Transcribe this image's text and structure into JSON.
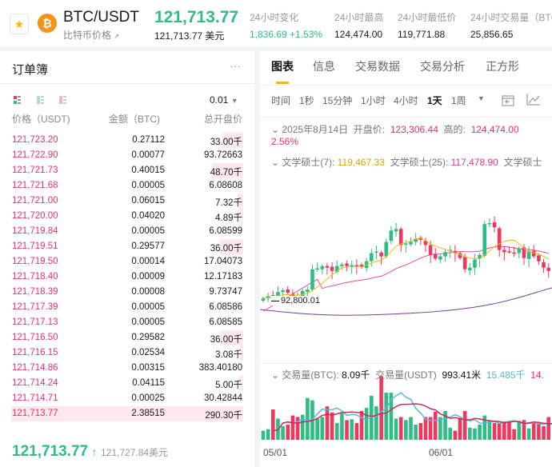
{
  "header": {
    "pair": "BTC/USDT",
    "subtitle": "比特币价格",
    "subtitle_icon": "external-arrow-icon",
    "price": "121,713.77",
    "price_usd": "121,713.77 美元",
    "stats": [
      {
        "label": "24小时变化",
        "value": "1,836.69 +1.53%",
        "color": "#2ebd85"
      },
      {
        "label": "24小时最高",
        "value": "124,474.00"
      },
      {
        "label": "24小时最低价",
        "value": "119,771.88"
      },
      {
        "label": "24小时交易量（BTC",
        "value": "25,856.65"
      }
    ]
  },
  "orderbook": {
    "title": "订单簿",
    "more": "···",
    "precision": "0.01",
    "columns": [
      "价格（USDT)",
      "金额（BTC)",
      "总开盘价"
    ],
    "rows": [
      [
        "121,723.20",
        "0.27112",
        "33.00千",
        0.36
      ],
      [
        "121,722.90",
        "0.00077",
        "93.72663",
        0
      ],
      [
        "121,721.73",
        "0.40015",
        "48.70千",
        0.53
      ],
      [
        "121,721.68",
        "0.00005",
        "6.08608",
        0
      ],
      [
        "121,721.00",
        "0.06015",
        "7.32千",
        0.1
      ],
      [
        "121,720.00",
        "0.04020",
        "4.89千",
        0.07
      ],
      [
        "121,719.84",
        "0.00005",
        "6.08599",
        0
      ],
      [
        "121,719.51",
        "0.29577",
        "36.00千",
        0.4
      ],
      [
        "121,719.50",
        "0.00014",
        "17.04073",
        0
      ],
      [
        "121,718.40",
        "0.00009",
        "12.17183",
        0
      ],
      [
        "121,718.39",
        "0.00008",
        "9.73747",
        0
      ],
      [
        "121,717.39",
        "0.00005",
        "6.08586",
        0
      ],
      [
        "121,717.13",
        "0.00005",
        "6.08585",
        0
      ],
      [
        "121,716.50",
        "0.29582",
        "36.00千",
        0.4
      ],
      [
        "121,716.15",
        "0.02534",
        "3.08千",
        0.05
      ],
      [
        "121,714.86",
        "0.00315",
        "383.40180",
        0
      ],
      [
        "121,714.24",
        "0.04115",
        "5.00千",
        0.07
      ],
      [
        "121,714.71",
        "0.00025",
        "30.42844",
        0
      ],
      [
        "121,713.77",
        "2.38515",
        "290.30千",
        1
      ]
    ],
    "last_price": "121,713.77",
    "last_arrow": "↑",
    "last_usd": "121,727.84美元"
  },
  "tabs": [
    "图表",
    "信息",
    "交易数据",
    "交易分析",
    "正方形"
  ],
  "timeframes": [
    "时间",
    "1秒",
    "15分钟",
    "1小时",
    "4小时",
    "1天",
    "1周"
  ],
  "ohlc": {
    "date": "2025年8月14日",
    "open_label": "开盘价:",
    "open": "123,306.44",
    "high_label": "高的:",
    "high": "124,474.00",
    "change": "2.56%"
  },
  "ma": {
    "ma7_label": "文学硕士(7):",
    "ma7": "119,467.33",
    "ma25_label": "文学硕士(25):",
    "ma25": "117,478.90",
    "ma99_label": "文学硕士"
  },
  "price_marker": "92,800.01",
  "volume": {
    "btc_label": "交易量(BTC):",
    "btc": "8.09千",
    "usdt_label": "交易量(USDT)",
    "usdt": "993.41米",
    "ma1": "15.485千",
    "ma2": "14."
  },
  "xaxis": [
    "05/01",
    "06/01"
  ],
  "colors": {
    "up": "#2ebd85",
    "down": "#f0375d",
    "ma7": "#f0b90b",
    "ma25": "#e0509a",
    "ma99": "#7a3d9a",
    "accent": "#f0b90b"
  },
  "chart_data": {
    "type": "candlestick",
    "closes_k": [
      94.5,
      95.2,
      94.8,
      96.5,
      97.0,
      96.2,
      94.5,
      94.0,
      96.8,
      97.2,
      103.5,
      103.8,
      104.5,
      104.0,
      103.0,
      104.5,
      105.0,
      104.5,
      104.8,
      104.6,
      104.2,
      106.0,
      108.5,
      109.0,
      107.5,
      112.0,
      115.5,
      116.0,
      111.0,
      111.5,
      112.0,
      113.0,
      112.6,
      111.0,
      108.0,
      106.8,
      107.5,
      108.8,
      109.5,
      108.5,
      107.0,
      103.5,
      104.0,
      106.5,
      108.0,
      117.5,
      117.8,
      116.5,
      109.5,
      108.8,
      109.0,
      108.5,
      110.0,
      107.0,
      109.2,
      107.5,
      106.0,
      104.0,
      103.0
    ],
    "volumes": [
      12,
      14,
      40,
      28,
      18,
      20,
      32,
      30,
      33,
      55,
      52,
      28,
      30,
      44,
      36,
      22,
      35,
      26,
      27,
      22,
      38,
      42,
      58,
      44,
      84,
      62,
      62,
      28,
      30,
      26,
      30,
      20,
      22,
      30,
      30,
      37,
      30,
      38,
      16,
      12,
      28,
      38,
      16,
      15,
      20,
      32,
      26,
      22,
      22,
      24,
      23,
      14,
      25,
      26,
      15,
      22,
      22,
      18,
      30
    ]
  }
}
